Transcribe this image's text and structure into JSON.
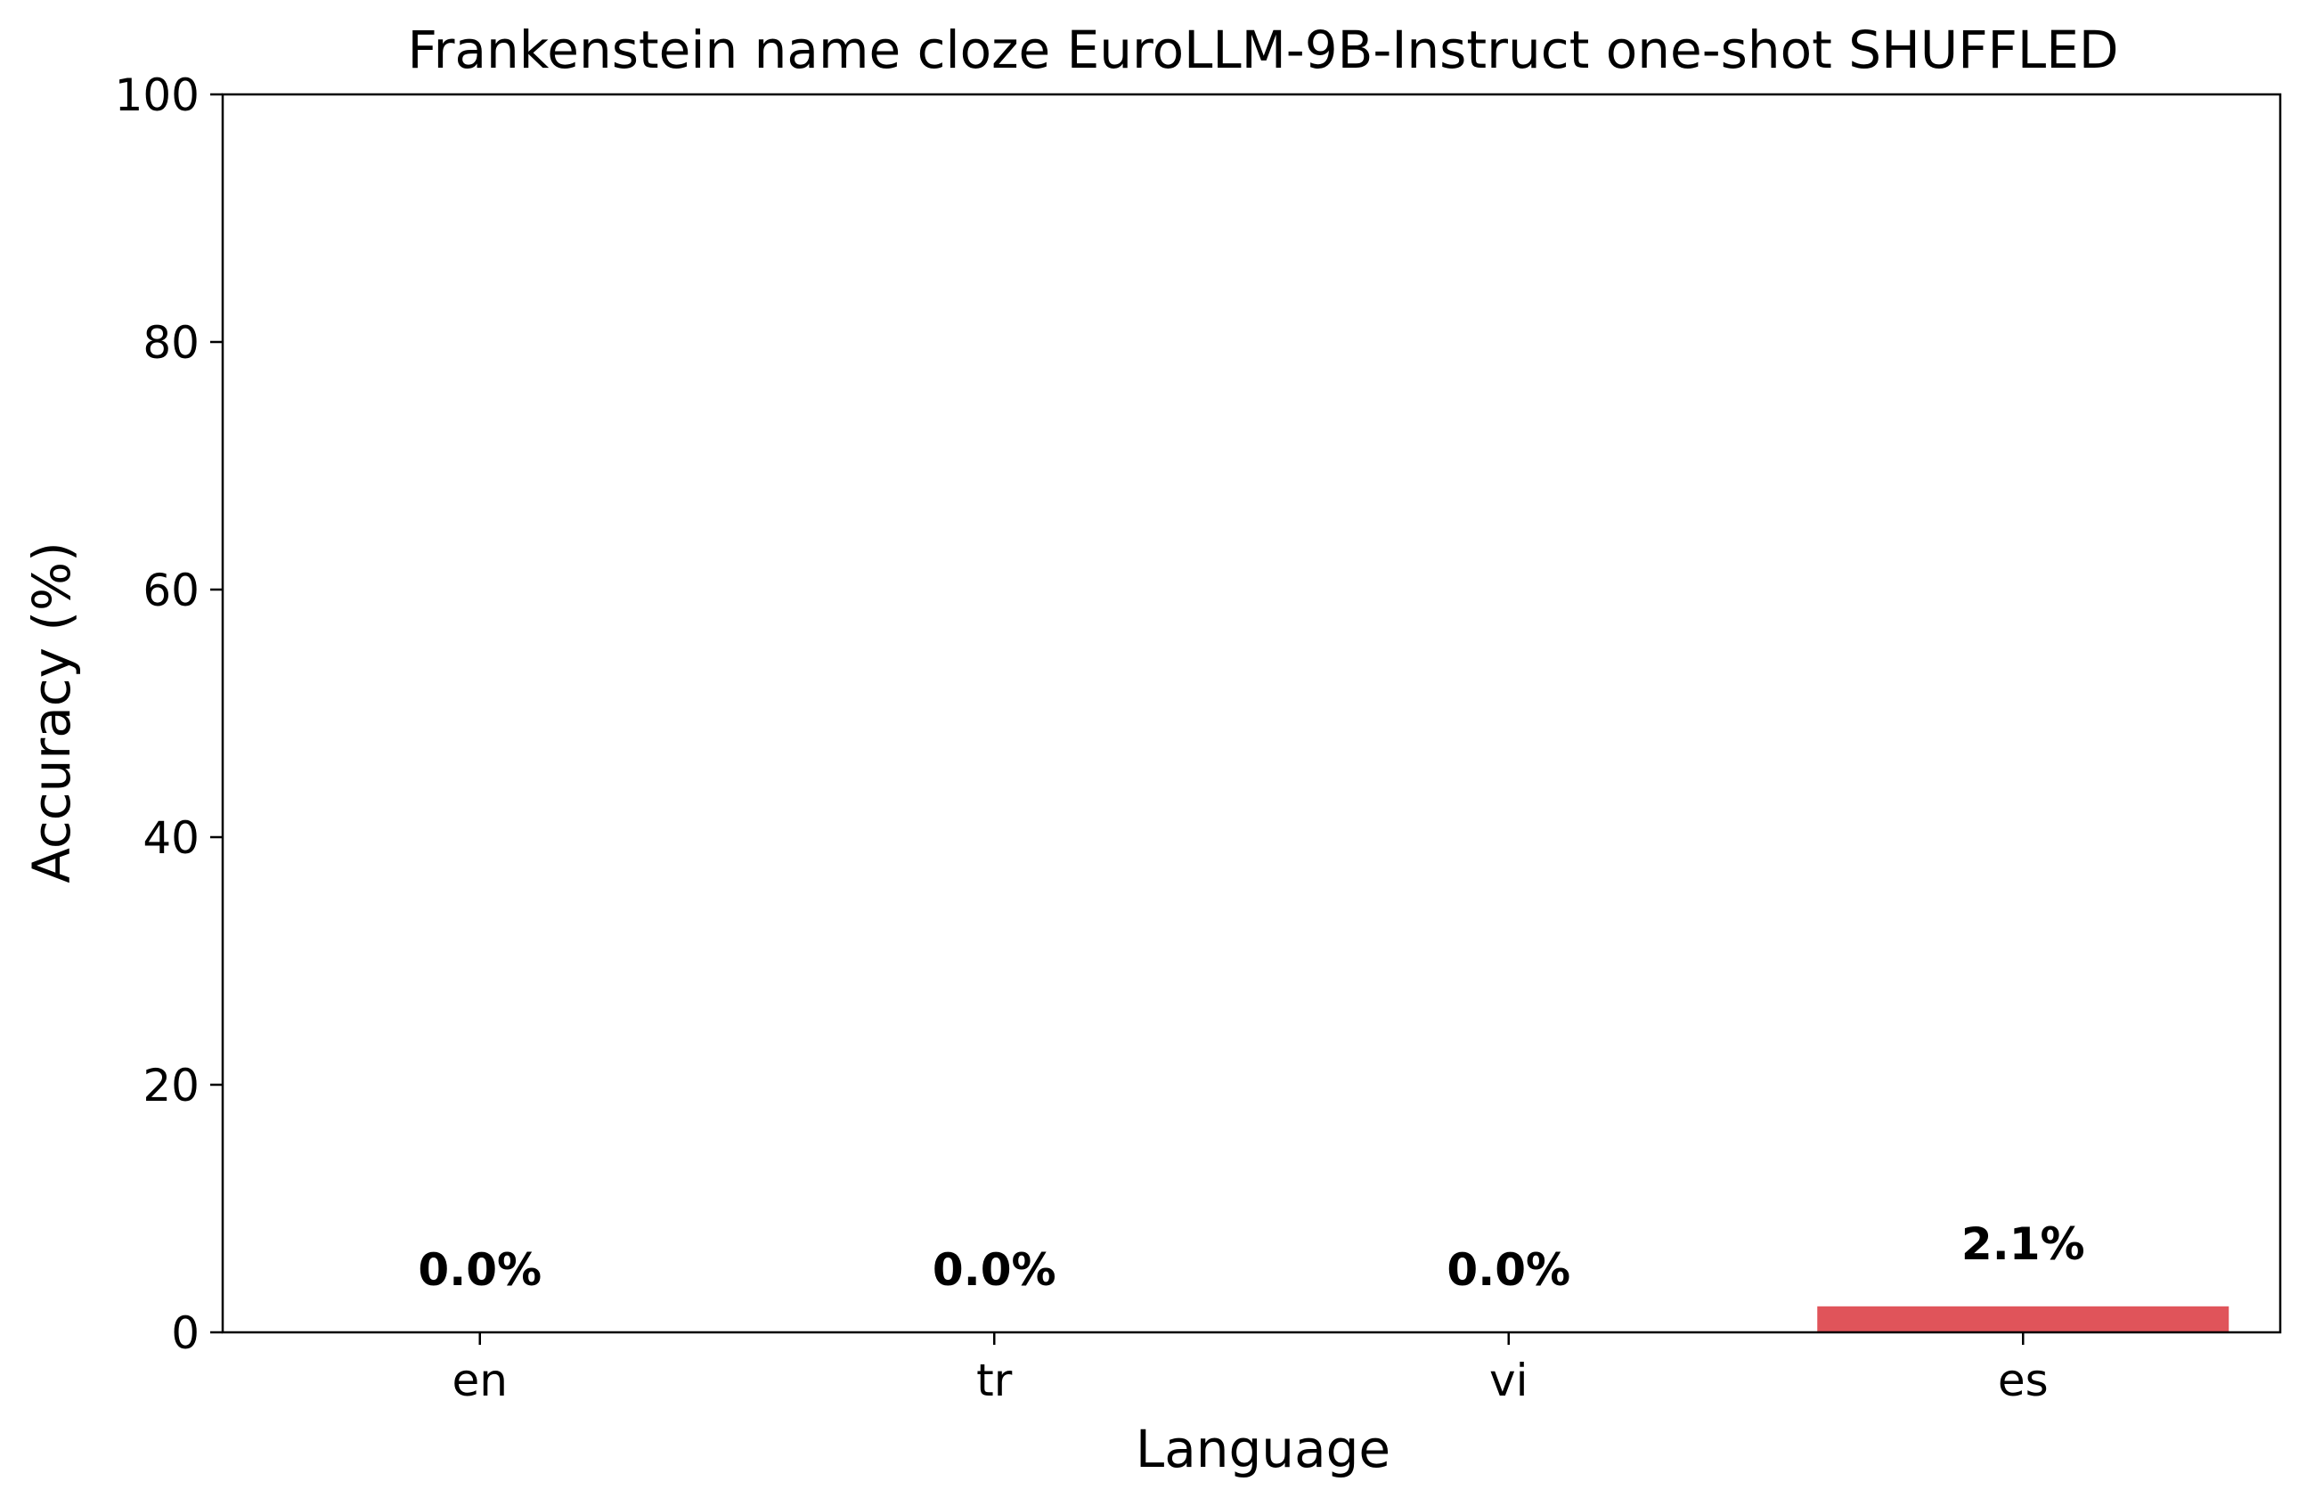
{
  "chart_data": {
    "type": "bar",
    "title": "Frankenstein name cloze EuroLLM-9B-Instruct one-shot SHUFFLED",
    "xlabel": "Language",
    "ylabel": "Accuracy (%)",
    "categories": [
      "en",
      "tr",
      "vi",
      "es"
    ],
    "values": [
      0.0,
      0.0,
      0.0,
      2.1
    ],
    "data_labels": [
      "0.0%",
      "0.0%",
      "0.0%",
      "2.1%"
    ],
    "ylim": [
      0,
      100
    ],
    "yticks": [
      0,
      20,
      40,
      60,
      80,
      100
    ],
    "ytick_labels": [
      "0",
      "20",
      "40",
      "60",
      "80",
      "100"
    ],
    "grid": false,
    "legend": "none",
    "bar_color": "#e0545a"
  }
}
